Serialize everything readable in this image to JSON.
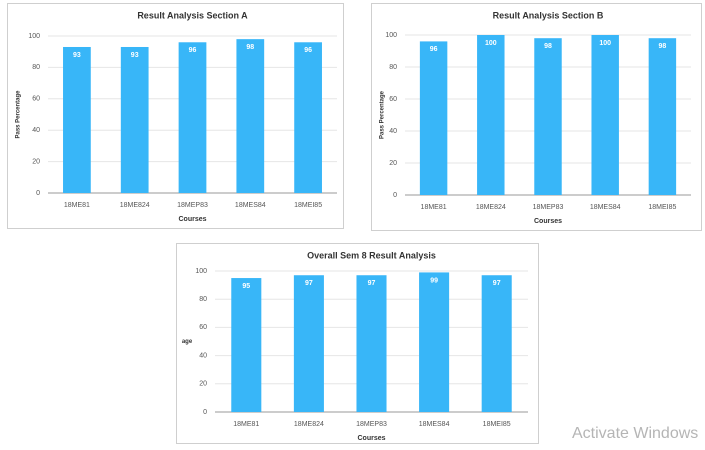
{
  "chart_data": [
    {
      "type": "bar",
      "title": "Result Analysis Section A",
      "x_label": "Courses",
      "y_label": "Pass Percentage",
      "categories": [
        "18ME81",
        "18ME824",
        "18MEP83",
        "18MES84",
        "18MEI85"
      ],
      "values": [
        93,
        93,
        96,
        98,
        96
      ],
      "color": "#38b6f8",
      "ylim": [
        0,
        100
      ],
      "yticks": [
        0,
        20,
        40,
        60,
        80,
        100
      ],
      "grid": true
    },
    {
      "type": "bar",
      "title": "Result Analysis Section B",
      "x_label": "Courses",
      "y_label": "Pass Percentage",
      "categories": [
        "18ME81",
        "18ME824",
        "18MEP83",
        "18MES84",
        "18MEI85"
      ],
      "values": [
        96,
        100,
        98,
        100,
        98
      ],
      "color": "#38b6f8",
      "ylim": [
        0,
        100
      ],
      "yticks": [
        0,
        20,
        40,
        60,
        80,
        100
      ],
      "grid": true
    },
    {
      "type": "bar",
      "title": "Overall Sem 8 Result Analysis",
      "x_label": "Courses",
      "y_label": "age",
      "categories": [
        "18ME81",
        "18ME824",
        "18MEP83",
        "18MES84",
        "18MEI85"
      ],
      "values": [
        95,
        97,
        97,
        99,
        97
      ],
      "color": "#38b6f8",
      "ylim": [
        0,
        100
      ],
      "yticks": [
        0,
        20,
        40,
        60,
        80,
        100
      ],
      "grid": true
    }
  ],
  "watermark": "Activate Windows"
}
